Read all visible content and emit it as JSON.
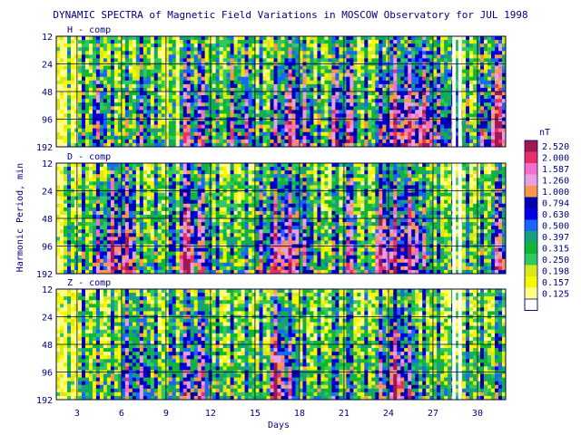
{
  "chart_data": {
    "type": "heatmap",
    "title": "DYNAMIC SPECTRA of Magnetic Field Variations in MOSCOW Observatory for JUL 1998",
    "xlabel": "Days",
    "ylabel": "Harmonic Period, min",
    "x_ticks": [
      "3",
      "6",
      "9",
      "12",
      "15",
      "18",
      "21",
      "24",
      "27",
      "30"
    ],
    "xlim": [
      1.6,
      31.9
    ],
    "y_ticks": [
      "12",
      "24",
      "48",
      "96",
      "192"
    ],
    "y_scale": "log2",
    "ylim": [
      12,
      192
    ],
    "panels": [
      {
        "name": "H - comp",
        "active_days": [
          4,
          5,
          6,
          10,
          16,
          17,
          19,
          22,
          23,
          24,
          25,
          26,
          27,
          31
        ],
        "profile": [
          0,
          0,
          1,
          2,
          1,
          1,
          2,
          1,
          0,
          2,
          2,
          1,
          2,
          2,
          1,
          2,
          3,
          2,
          1,
          2,
          2,
          1,
          2,
          3,
          3,
          3,
          2,
          2,
          1,
          2,
          3
        ]
      },
      {
        "name": "D - comp",
        "active_days": [
          5,
          6,
          10,
          11,
          16,
          17,
          23,
          24,
          25,
          31
        ],
        "profile": [
          0,
          1,
          1,
          2,
          3,
          3,
          1,
          1,
          1,
          3,
          2,
          1,
          1,
          1,
          2,
          3,
          3,
          2,
          1,
          1,
          2,
          1,
          3,
          3,
          3,
          2,
          1,
          1,
          1,
          1,
          2
        ]
      },
      {
        "name": "Z - comp",
        "active_days": [
          6,
          7,
          10,
          11,
          16,
          17,
          23,
          24,
          25,
          31
        ],
        "profile": [
          0,
          0,
          1,
          1,
          1,
          2,
          2,
          1,
          1,
          2,
          2,
          1,
          1,
          1,
          1,
          3,
          2,
          1,
          1,
          1,
          1,
          1,
          2,
          3,
          2,
          1,
          1,
          1,
          1,
          1,
          1
        ]
      }
    ],
    "legend": {
      "unit": "nT",
      "levels": [
        {
          "value": "2.520",
          "color": "#a01850"
        },
        {
          "value": "2.000",
          "color": "#e83068"
        },
        {
          "value": "1.587",
          "color": "#f070c8"
        },
        {
          "value": "1.260",
          "color": "#e8a0e0"
        },
        {
          "value": "1.000",
          "color": "#f89848"
        },
        {
          "value": "0.794",
          "color": "#0000a8"
        },
        {
          "value": "0.630",
          "color": "#0000e0"
        },
        {
          "value": "0.500",
          "color": "#1868f8"
        },
        {
          "value": "0.397",
          "color": "#18a078"
        },
        {
          "value": "0.315",
          "color": "#10b830"
        },
        {
          "value": "0.250",
          "color": "#30c860"
        },
        {
          "value": "0.198",
          "color": "#d8e818"
        },
        {
          "value": "0.157",
          "color": "#f8f800"
        },
        {
          "value": "0.125",
          "color": "#ffff88"
        }
      ]
    }
  }
}
